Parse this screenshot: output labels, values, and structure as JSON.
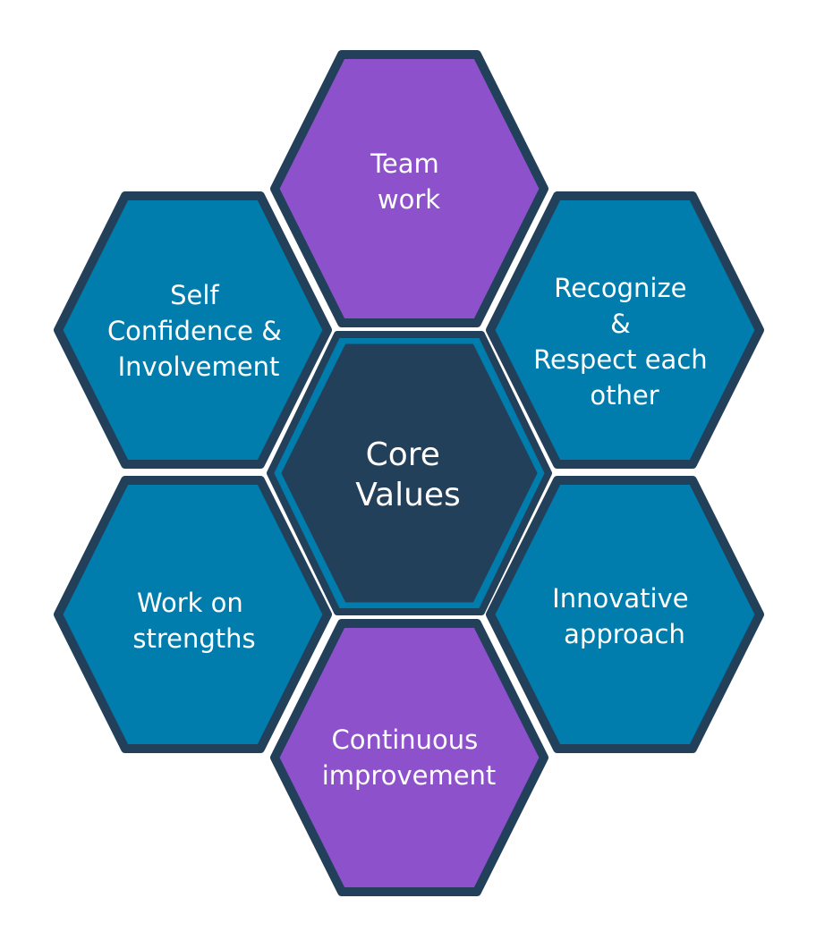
{
  "diagram": {
    "colors": {
      "border": "#23405a",
      "teal": "#007dad",
      "purple": "#8e51cc",
      "center_fill": "#23405a",
      "center_ring": "#007dad",
      "text": "#ffffff"
    },
    "center": {
      "id": "core-values",
      "lines": [
        "Core",
        "Values"
      ]
    },
    "hexagons": [
      {
        "id": "team-work",
        "lines": [
          "Team",
          "work"
        ],
        "color": "purple"
      },
      {
        "id": "self-confidence",
        "lines": [
          "Self",
          "Confidence &",
          "Involvement"
        ],
        "color": "teal"
      },
      {
        "id": "recognize-respect",
        "lines": [
          "Recognize",
          "&",
          "Respect each",
          "other"
        ],
        "color": "teal"
      },
      {
        "id": "work-on-strengths",
        "lines": [
          "Work on",
          "strengths"
        ],
        "color": "teal"
      },
      {
        "id": "innovative-approach",
        "lines": [
          "Innovative",
          "approach"
        ],
        "color": "teal"
      },
      {
        "id": "continuous-improvement",
        "lines": [
          "Continuous",
          "improvement"
        ],
        "color": "purple"
      }
    ]
  }
}
